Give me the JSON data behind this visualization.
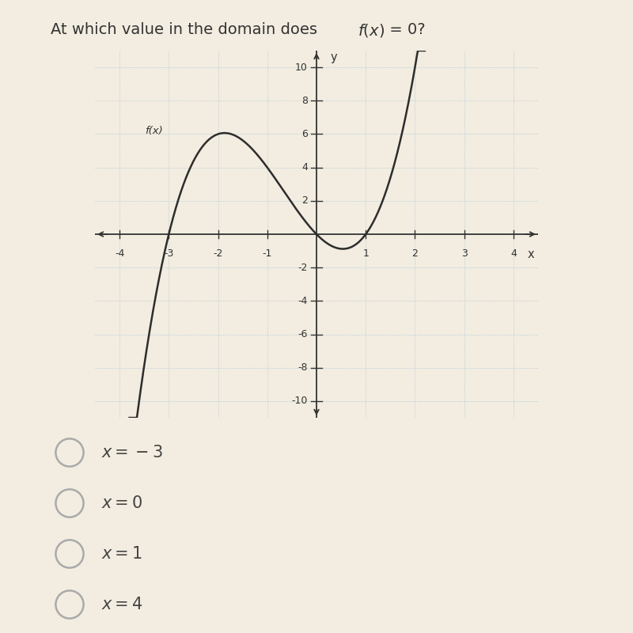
{
  "title_plain": "At which value in the domain does ",
  "title_italic": "f(x)",
  "title_end": " = 0?",
  "title_fontsize": 14,
  "xlim": [
    -4.5,
    4.5
  ],
  "ylim": [
    -11,
    11
  ],
  "xticks": [
    -4,
    -3,
    -2,
    -1,
    1,
    2,
    3,
    4
  ],
  "yticks": [
    -10,
    -8,
    -6,
    -4,
    -2,
    2,
    4,
    6,
    8,
    10
  ],
  "curve_color": "#2d2d2d",
  "curve_linewidth": 1.8,
  "grid_color": "#b8c8d8",
  "grid_color2": "#ccd8e0",
  "background_color": "#f2ede0",
  "plot_bg": "#ede8d8",
  "fx_label": "f(x)",
  "x_label": "x",
  "y_label": "y",
  "choices": [
    "x = −3",
    "x = 0",
    "x = 1",
    "x = 4"
  ],
  "choice_fontsize": 15,
  "axis_color": "#333333",
  "tick_fontsize": 9,
  "label_color": "#555555"
}
